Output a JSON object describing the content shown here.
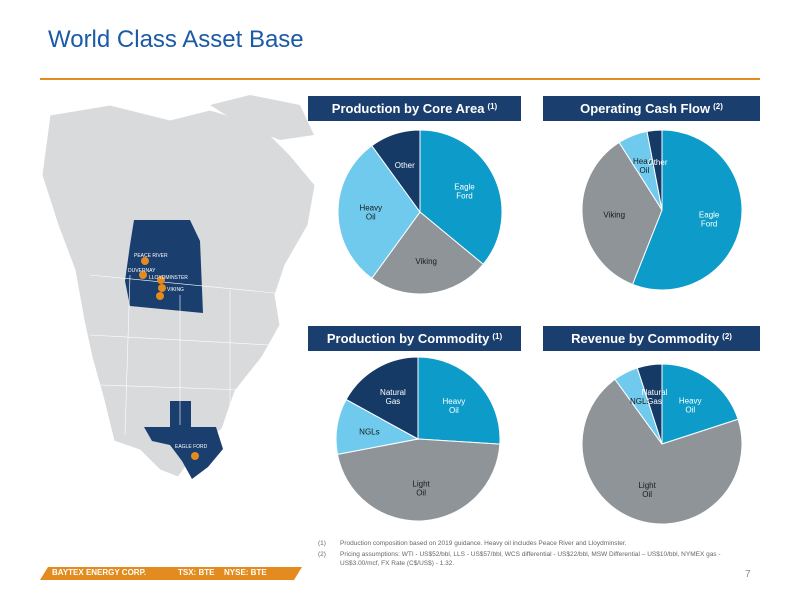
{
  "title": "World Class Asset Base",
  "panels": {
    "core_area": {
      "heading": "Production by Core Area",
      "note": "(1)",
      "slices": [
        {
          "label": "Eagle Ford",
          "value": 36,
          "color": "#0d9cc9"
        },
        {
          "label": "Viking",
          "value": 24,
          "color": "#8f9498"
        },
        {
          "label": "Heavy Oil",
          "value": 30,
          "color": "#6fcaee"
        },
        {
          "label": "Other",
          "value": 10,
          "color": "#163a66"
        }
      ]
    },
    "cash_flow": {
      "heading": "Operating Cash Flow",
      "note": "(2)",
      "slices": [
        {
          "label": "Eagle Ford",
          "value": 56,
          "color": "#0d9cc9"
        },
        {
          "label": "Viking",
          "value": 35,
          "color": "#8f9498"
        },
        {
          "label": "Heavy Oil",
          "value": 6,
          "color": "#6fcaee"
        },
        {
          "label": "Other",
          "value": 3,
          "color": "#163a66"
        }
      ]
    },
    "commodity_production": {
      "heading": "Production by Commodity",
      "note": "(1)",
      "slices": [
        {
          "label": "Heavy Oil",
          "value": 26,
          "color": "#0d9cc9"
        },
        {
          "label": "Light Oil",
          "value": 46,
          "color": "#8f9498"
        },
        {
          "label": "NGLs",
          "value": 11,
          "color": "#6fcaee"
        },
        {
          "label": "Natural Gas",
          "value": 17,
          "color": "#163a66"
        }
      ]
    },
    "commodity_revenue": {
      "heading": "Revenue by Commodity",
      "note": "(2)",
      "slices": [
        {
          "label": "Heavy Oil",
          "value": 20,
          "color": "#0d9cc9"
        },
        {
          "label": "Light Oil",
          "value": 70,
          "color": "#8f9498"
        },
        {
          "label": "NGLs",
          "value": 5,
          "color": "#6fcaee"
        },
        {
          "label": "Natural Gas",
          "value": 5,
          "color": "#163a66"
        }
      ]
    }
  },
  "map": {
    "labels": {
      "peace_river": "PEACE RIVER",
      "duvernay": "DUVERNAY",
      "lloydminster": "LLOYDMINSTER",
      "viking": "VIKING",
      "eagle_ford": "EAGLE FORD"
    }
  },
  "footnotes": [
    {
      "num": "(1)",
      "text": "Production composition based on 2019 guidance. Heavy oil includes Peace River and Lloydminster."
    },
    {
      "num": "(2)",
      "text": "Pricing assumptions: WTI - US$52/bbl, LLS - US$57/bbl, WCS differential - US$22/bbl, MSW Differential – US$10/bbl, NYMEX gas - US$3.00/mcf, FX Rate (C$/US$) - 1.32."
    }
  ],
  "footer": {
    "company": "BAYTEX ENERGY CORP.",
    "tsx": "TSX: BTE",
    "nyse": "NYSE: BTE",
    "bar_color": "#e38b1e"
  },
  "page_number": "7"
}
